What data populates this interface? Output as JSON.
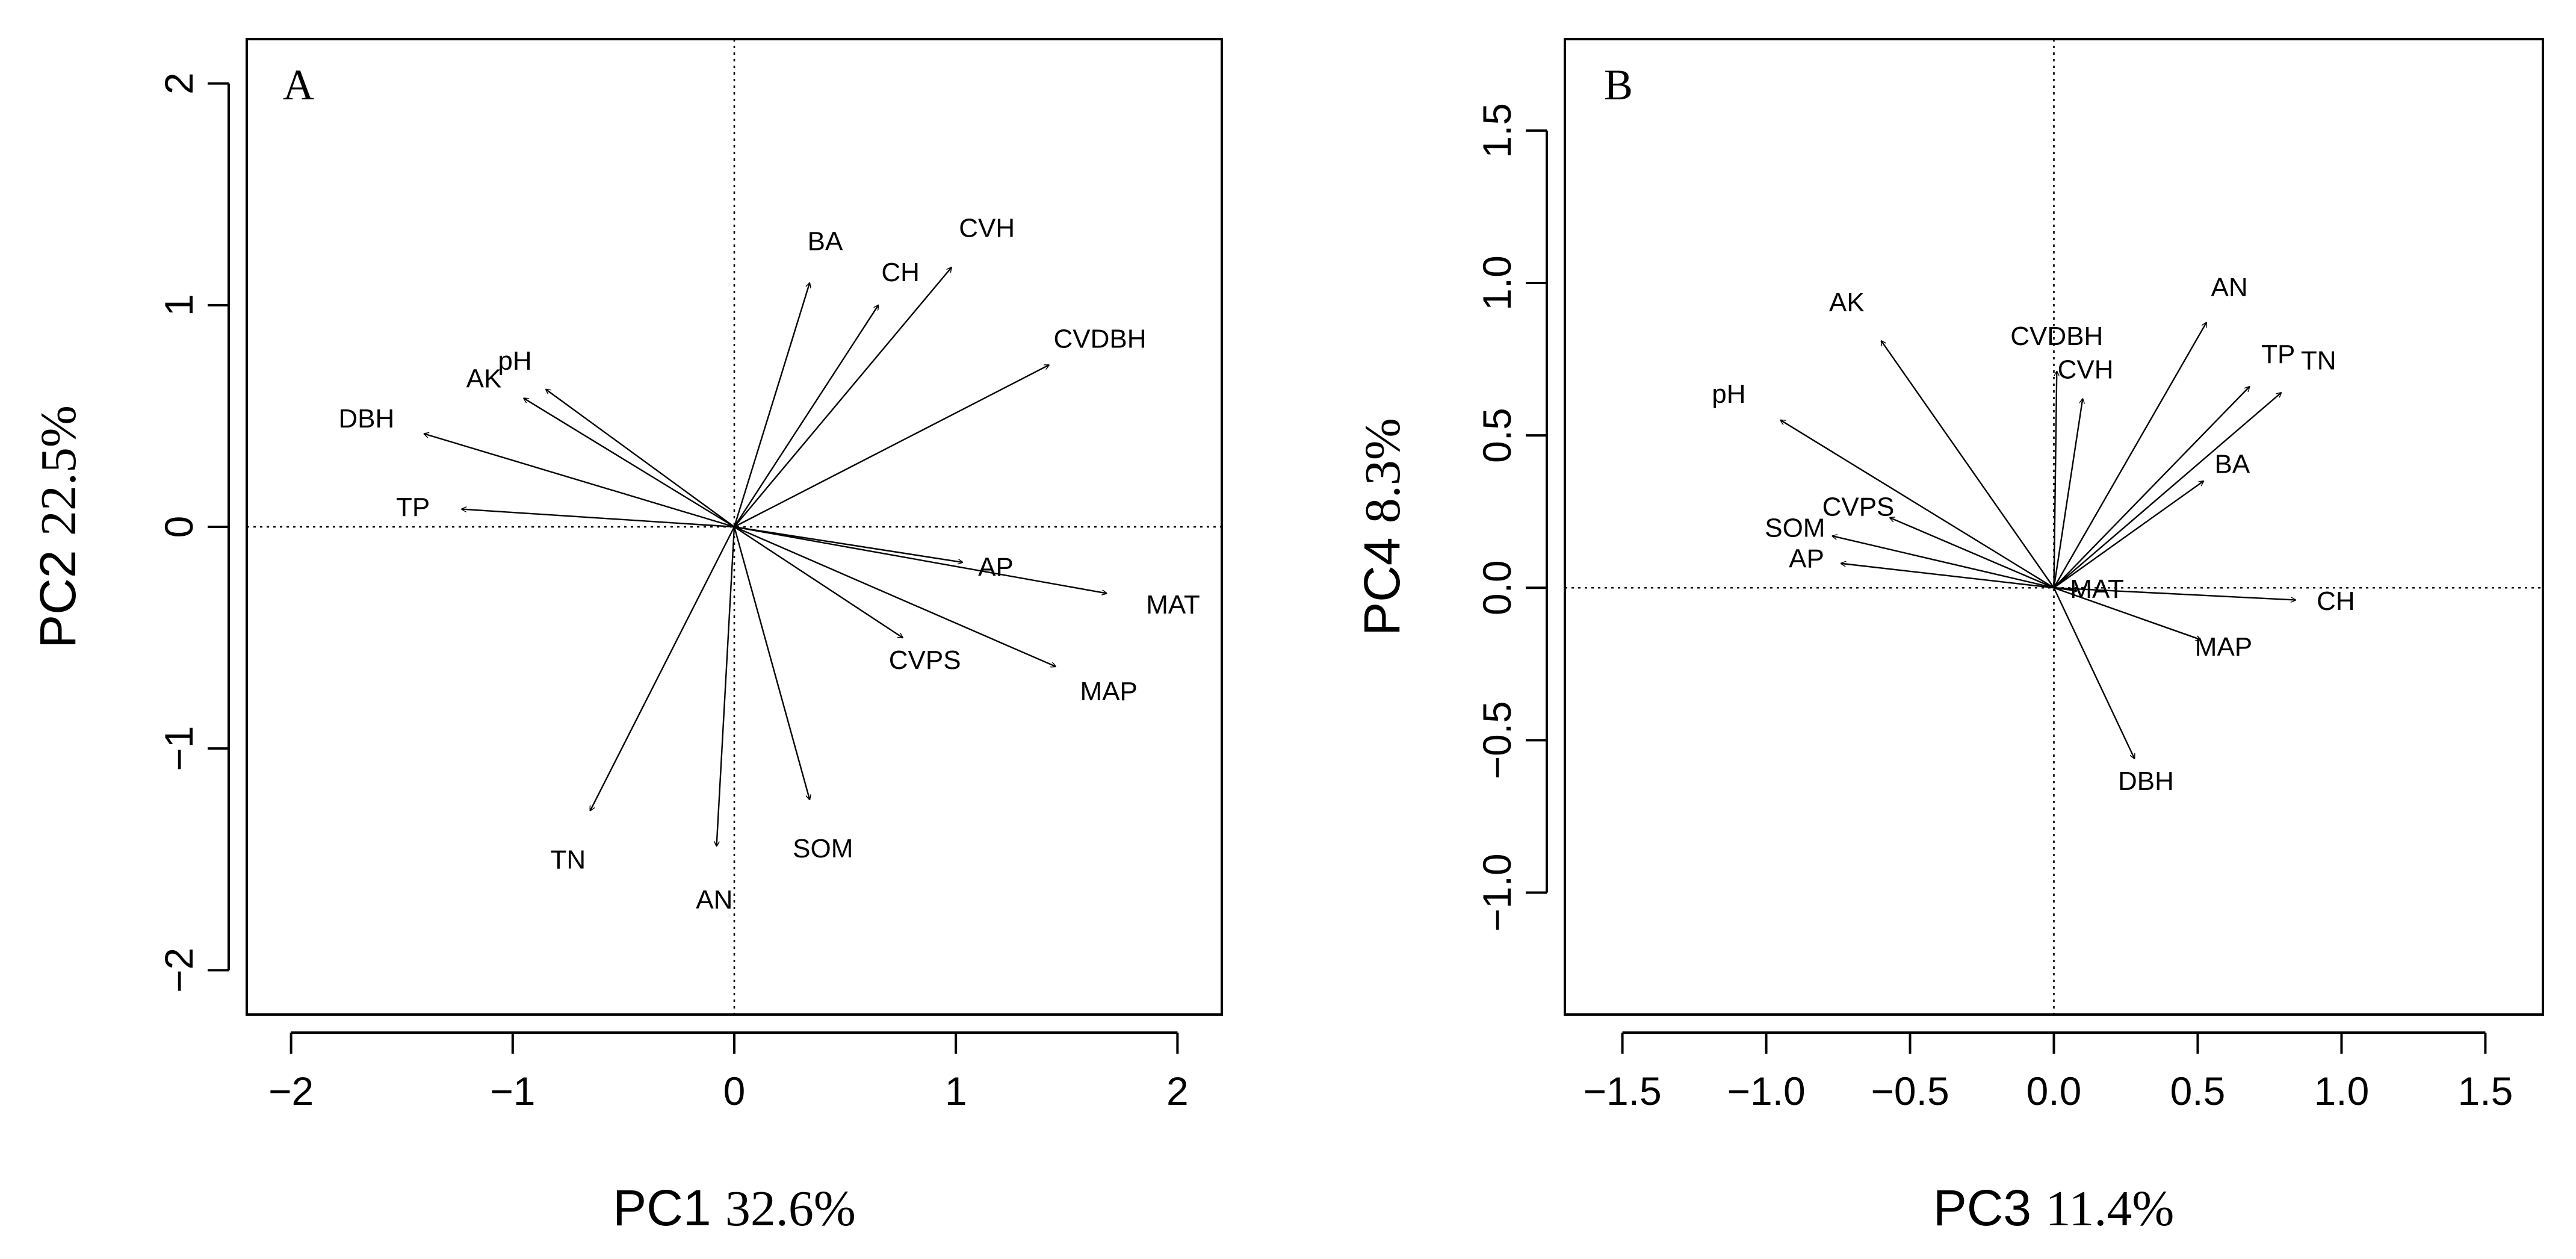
{
  "chart_data": [
    {
      "type": "scatter",
      "subtype": "biplot-arrows",
      "panel_label": "A",
      "xlabel": "PC1",
      "xlabel_pct": "32.6%",
      "ylabel": "PC2",
      "ylabel_pct": "22.5%",
      "xlim": [
        -2.2,
        2.2
      ],
      "ylim": [
        -2.2,
        2.2
      ],
      "xticks": [
        -2,
        -1,
        0,
        1,
        2
      ],
      "xtick_labels": [
        "−2",
        "−1",
        "0",
        "1",
        "2"
      ],
      "yticks": [
        -2,
        -1,
        0,
        1,
        2
      ],
      "ytick_labels": [
        "−2",
        "−1",
        "0",
        "1",
        "2"
      ],
      "arrows": [
        {
          "name": "BA",
          "x": 0.34,
          "y": 1.1,
          "lx": 0.41,
          "ly": 1.28
        },
        {
          "name": "CH",
          "x": 0.65,
          "y": 1.0,
          "lx": 0.75,
          "ly": 1.14
        },
        {
          "name": "CVH",
          "x": 0.98,
          "y": 1.17,
          "lx": 1.14,
          "ly": 1.34
        },
        {
          "name": "CVDBH",
          "x": 1.42,
          "y": 0.73,
          "lx": 1.65,
          "ly": 0.84
        },
        {
          "name": "pH",
          "x": -0.85,
          "y": 0.62,
          "lx": -0.99,
          "ly": 0.74
        },
        {
          "name": "AK",
          "x": -0.95,
          "y": 0.58,
          "lx": -1.13,
          "ly": 0.66
        },
        {
          "name": "DBH",
          "x": -1.4,
          "y": 0.42,
          "lx": -1.66,
          "ly": 0.48
        },
        {
          "name": "TP",
          "x": -1.23,
          "y": 0.08,
          "lx": -1.45,
          "ly": 0.08
        },
        {
          "name": "AP",
          "x": 1.03,
          "y": -0.16,
          "lx": 1.18,
          "ly": -0.19
        },
        {
          "name": "MAT",
          "x": 1.68,
          "y": -0.3,
          "lx": 1.98,
          "ly": -0.36
        },
        {
          "name": "CVPS",
          "x": 0.76,
          "y": -0.5,
          "lx": 0.86,
          "ly": -0.61
        },
        {
          "name": "MAP",
          "x": 1.45,
          "y": -0.63,
          "lx": 1.69,
          "ly": -0.75
        },
        {
          "name": "TN",
          "x": -0.65,
          "y": -1.28,
          "lx": -0.75,
          "ly": -1.51
        },
        {
          "name": "AN",
          "x": -0.08,
          "y": -1.44,
          "lx": -0.09,
          "ly": -1.69
        },
        {
          "name": "SOM",
          "x": 0.34,
          "y": -1.23,
          "lx": 0.4,
          "ly": -1.46
        }
      ]
    },
    {
      "type": "scatter",
      "subtype": "biplot-arrows",
      "panel_label": "B",
      "xlabel": "PC3",
      "xlabel_pct": "11.4%",
      "ylabel": "PC4",
      "ylabel_pct": "8.3%",
      "xlim": [
        -1.7,
        1.7
      ],
      "ylim": [
        -1.4,
        1.8
      ],
      "xticks": [
        -1.5,
        -1.0,
        -0.5,
        0.0,
        0.5,
        1.0,
        1.5
      ],
      "xtick_labels": [
        "−1.5",
        "−1.0",
        "−0.5",
        "0.0",
        "0.5",
        "1.0",
        "1.5"
      ],
      "yticks": [
        -1.0,
        -0.5,
        0.0,
        0.5,
        1.0,
        1.5
      ],
      "ytick_labels": [
        "−1.0",
        "−0.5",
        "0.0",
        "0.5",
        "1.0",
        "1.5"
      ],
      "arrows": [
        {
          "name": "AK",
          "x": -0.6,
          "y": 0.81,
          "lx": -0.72,
          "ly": 0.93
        },
        {
          "name": "pH",
          "x": -0.95,
          "y": 0.55,
          "lx": -1.13,
          "ly": 0.63
        },
        {
          "name": "CVDBH",
          "x": 0.01,
          "y": 0.71,
          "lx": 0.01,
          "ly": 0.82
        },
        {
          "name": "CVH",
          "x": 0.1,
          "y": 0.62,
          "lx": 0.11,
          "ly": 0.71
        },
        {
          "name": "AN",
          "x": 0.53,
          "y": 0.87,
          "lx": 0.61,
          "ly": 0.98
        },
        {
          "name": "TP",
          "x": 0.68,
          "y": 0.66,
          "lx": 0.78,
          "ly": 0.76
        },
        {
          "name": "TN",
          "x": 0.79,
          "y": 0.64,
          "lx": 0.92,
          "ly": 0.74
        },
        {
          "name": "BA",
          "x": 0.52,
          "y": 0.35,
          "lx": 0.62,
          "ly": 0.4
        },
        {
          "name": "CVPS",
          "x": -0.57,
          "y": 0.23,
          "lx": -0.68,
          "ly": 0.26
        },
        {
          "name": "SOM",
          "x": -0.77,
          "y": 0.17,
          "lx": -0.9,
          "ly": 0.19
        },
        {
          "name": "AP",
          "x": -0.74,
          "y": 0.08,
          "lx": -0.86,
          "ly": 0.09
        },
        {
          "name": "MAT",
          "x": 0.08,
          "y": -0.01,
          "lx": 0.15,
          "ly": -0.01
        },
        {
          "name": "CH",
          "x": 0.84,
          "y": -0.04,
          "lx": 0.98,
          "ly": -0.05
        },
        {
          "name": "MAP",
          "x": 0.51,
          "y": -0.17,
          "lx": 0.59,
          "ly": -0.2
        },
        {
          "name": "DBH",
          "x": 0.28,
          "y": -0.56,
          "lx": 0.32,
          "ly": -0.64
        }
      ]
    }
  ]
}
